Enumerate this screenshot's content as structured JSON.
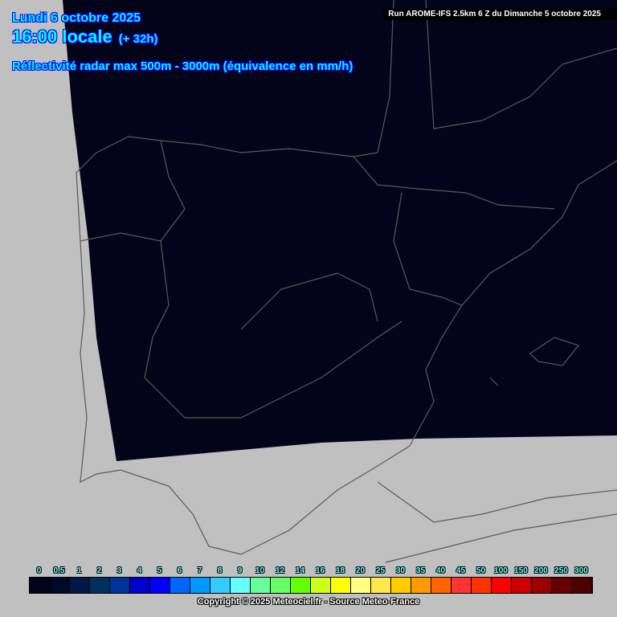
{
  "header": {
    "date": "Lundi 6 octobre 2025",
    "time": "16:00 locale",
    "lead": "(+ 32h)",
    "parameter": "Réflectivité radar max 500m - 3000m (équivalence en mm/h)",
    "run": "Run AROME-IFS 2.5km 6 Z du Dimanche 5 octobre 2025"
  },
  "legend": {
    "labels": [
      "0",
      "0.5",
      "1",
      "2",
      "3",
      "4",
      "5",
      "6",
      "7",
      "8",
      "9",
      "10",
      "12",
      "14",
      "16",
      "18",
      "20",
      "25",
      "30",
      "35",
      "40",
      "45",
      "50",
      "100",
      "150",
      "200",
      "250",
      "300"
    ],
    "colors": [
      "#03031a",
      "#000828",
      "#001848",
      "#003060",
      "#003399",
      "#0000cc",
      "#0000ff",
      "#0066ff",
      "#0099ff",
      "#33ccff",
      "#66ffff",
      "#66ff99",
      "#66ff66",
      "#66ff00",
      "#ccff1a",
      "#ffff00",
      "#ffff80",
      "#ffe64d",
      "#ffcc00",
      "#ff9900",
      "#ff6600",
      "#ff3333",
      "#ff3300",
      "#ff0000",
      "#cc0000",
      "#990000",
      "#660000",
      "#4d0000"
    ]
  },
  "footer": {
    "copyright": "Copyright © 2025 Meteociel.fr - Source Meteo-France"
  },
  "colors": {
    "no_data": "#c0c0c0",
    "domain_fill": "#03031a",
    "borders": "#555555"
  }
}
